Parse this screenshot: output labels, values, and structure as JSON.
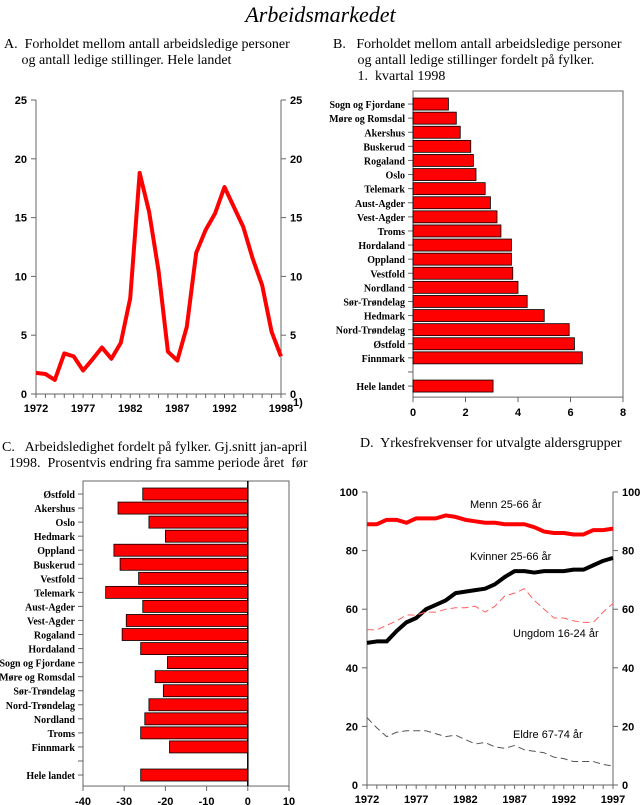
{
  "page": {
    "title": "Arbeidsmarkedet"
  },
  "colors": {
    "bar": "#ff0000",
    "bar_outline": "#000000",
    "line_red": "#ff0000",
    "line_black": "#000000",
    "line_light_red": "#ff6060",
    "line_gray": "#555555",
    "axis": "#666666"
  },
  "chart_data": [
    {
      "id": "A",
      "type": "line",
      "title": "A.  Forholdet mellom antall arbeidsledige personer\n     og antall ledige stillinger. Hele landet",
      "xlabel": "",
      "ylabel": "",
      "x": [
        1972,
        1973,
        1974,
        1975,
        1976,
        1977,
        1978,
        1979,
        1980,
        1981,
        1982,
        1983,
        1984,
        1985,
        1986,
        1987,
        1988,
        1989,
        1990,
        1991,
        1992,
        1993,
        1994,
        1995,
        1996,
        1997,
        1998
      ],
      "series": [
        {
          "name": "Hele landet",
          "values": [
            1.8,
            1.7,
            1.2,
            3.45,
            3.2,
            2.0,
            2.95,
            3.95,
            3.0,
            4.35,
            8.15,
            18.8,
            15.5,
            10.5,
            3.6,
            2.85,
            5.7,
            12.0,
            13.95,
            15.35,
            17.6,
            15.9,
            14.2,
            11.5,
            9.25,
            5.3,
            3.2
          ]
        }
      ],
      "xticks": [
        "1972",
        "1977",
        "1982",
        "1987",
        "1992",
        "1998"
      ],
      "xtick_values": [
        1972,
        1977,
        1982,
        1987,
        1992,
        1998
      ],
      "yticks": [
        "0",
        "5",
        "10",
        "15",
        "20",
        "25"
      ],
      "ylim": [
        0,
        25
      ],
      "xlim": [
        1972,
        1998
      ],
      "footnote": "1)",
      "grid": false,
      "right_axis": true
    },
    {
      "id": "B",
      "type": "bar",
      "orientation": "horizontal",
      "title": "B.   Forholdet mellom antall arbeidsledige personer\n       og antall ledige stillinger fordelt på fylker.\n       1.  kvartal 1998",
      "categories": [
        "Sogn og Fjordane",
        "Møre og Romsdal",
        "Akershus",
        "Buskerud",
        "Rogaland",
        "Oslo",
        "Telemark",
        "Aust-Agder",
        "Vest-Agder",
        "Troms",
        "Hordaland",
        "Oppland",
        "Vestfold",
        "Nordland",
        "Sør-Trøndelag",
        "Hedmark",
        "Nord-Trøndelag",
        "Østfold",
        "Finnmark",
        "",
        "Hele landet"
      ],
      "values": [
        1.35,
        1.65,
        1.8,
        2.2,
        2.3,
        2.4,
        2.75,
        2.95,
        3.2,
        3.35,
        3.75,
        3.75,
        3.8,
        4.0,
        4.35,
        5.0,
        5.95,
        6.15,
        6.45,
        null,
        3.05
      ],
      "xticks": [
        "0",
        "2",
        "4",
        "6",
        "8"
      ],
      "xlim": [
        0,
        8
      ],
      "grid": false
    },
    {
      "id": "C",
      "type": "bar",
      "orientation": "horizontal",
      "title": "C.   Arbeidsledighet fordelt på fylker. Gj.snitt jan-april\n  1998.  Prosentvis endring fra samme periode året  før",
      "categories": [
        "Østfold",
        "Akershus",
        "Oslo",
        "Hedmark",
        "Oppland",
        "Buskerud",
        "Vestfold",
        "Telemark",
        "Aust-Agder",
        "Vest-Agder",
        "Rogaland",
        "Hordaland",
        "Sogn og Fjordane",
        "Møre og Romsdal",
        "Sør-Trøndelag",
        "Nord-Trøndelag",
        "Nordland",
        "Troms",
        "Finnmark",
        "",
        "Hele landet"
      ],
      "values": [
        -25.5,
        -31.5,
        -24,
        -20,
        -32.5,
        -31,
        -26.5,
        -34.5,
        -25.5,
        -29.5,
        -30.5,
        -26,
        -19.5,
        -22.5,
        -20.5,
        -24,
        -25,
        -26,
        -19,
        null,
        -26
      ],
      "xticks": [
        "-40",
        "-30",
        "-20",
        "-10",
        "0",
        "10"
      ],
      "xlim": [
        -40,
        10
      ],
      "grid": false
    },
    {
      "id": "D",
      "type": "line",
      "title": "D.  Yrkesfrekvenser for utvalgte aldersgrupper",
      "x": [
        1972,
        1973,
        1974,
        1975,
        1976,
        1977,
        1978,
        1979,
        1980,
        1981,
        1982,
        1983,
        1984,
        1985,
        1986,
        1987,
        1988,
        1989,
        1990,
        1991,
        1992,
        1993,
        1994,
        1995,
        1996,
        1997
      ],
      "series": [
        {
          "name": "Menn 25-66 år",
          "style": "thick-red",
          "values": [
            89,
            89,
            90.5,
            90.5,
            89.5,
            91,
            91,
            91,
            92,
            91.5,
            90.5,
            90,
            89.5,
            89.5,
            89,
            89,
            89,
            88,
            86.5,
            86,
            86,
            85.5,
            85.5,
            87,
            87,
            87.5
          ]
        },
        {
          "name": "Kvinner 25-66 år",
          "style": "thick-black",
          "values": [
            48.5,
            49,
            49,
            52.5,
            55.5,
            57,
            60,
            61.5,
            63,
            65.5,
            66,
            66.5,
            67,
            68.5,
            71,
            73,
            73,
            72.5,
            73,
            73,
            73,
            73.5,
            73.5,
            75,
            76.5,
            77.5
          ]
        },
        {
          "name": "Ungdom 16-24 år",
          "style": "dashed-red",
          "values": [
            53,
            53,
            54.5,
            56,
            58,
            58,
            59,
            59,
            60,
            60.5,
            60.5,
            61,
            59,
            61,
            64.5,
            65.5,
            67,
            63,
            60,
            57,
            57,
            56,
            55.5,
            55.5,
            59,
            62
          ]
        },
        {
          "name": "Eldre 67-74 år",
          "style": "dashed-gray",
          "values": [
            23,
            19.5,
            16.5,
            18,
            18.5,
            18.5,
            18.5,
            17.5,
            16.5,
            17,
            15.5,
            14,
            14.5,
            13,
            12.5,
            13.5,
            12,
            11.5,
            11,
            9.5,
            9,
            8,
            8,
            8,
            7,
            6.5
          ]
        }
      ],
      "xticks": [
        "1972",
        "1977",
        "1982",
        "1987",
        "1992",
        "1997"
      ],
      "xtick_values": [
        1972,
        1977,
        1982,
        1987,
        1992,
        1997
      ],
      "yticks": [
        "0",
        "20",
        "40",
        "60",
        "80",
        "100"
      ],
      "ylim": [
        0,
        100
      ],
      "xlim": [
        1972,
        1997
      ],
      "grid": false,
      "right_axis": true
    }
  ]
}
